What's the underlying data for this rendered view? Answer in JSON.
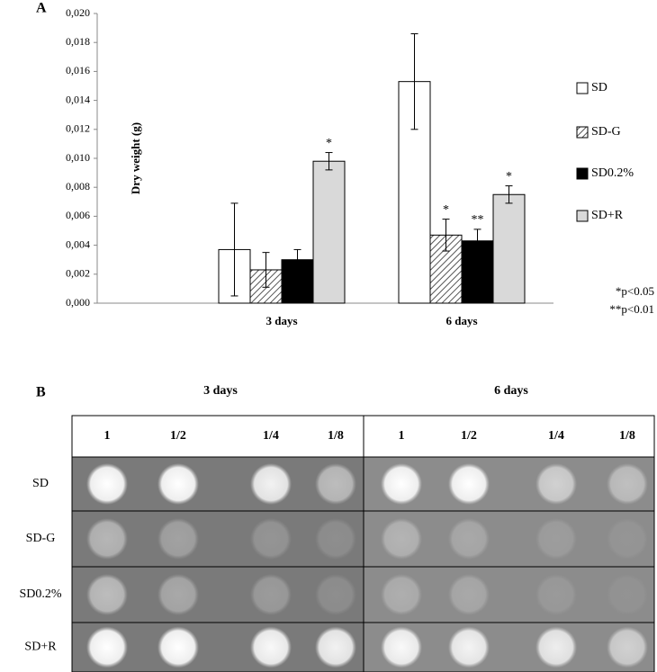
{
  "chart_data": {
    "type": "bar",
    "label": "A",
    "y_label": "Dry weight (g)",
    "categories": [
      "3 days",
      "6 days"
    ],
    "series": [
      {
        "name": "SD",
        "color": "#ffffff",
        "hatch": false,
        "values": [
          0.0037,
          0.0153
        ],
        "errors": [
          0.0032,
          0.0033
        ],
        "significance": [
          null,
          null
        ]
      },
      {
        "name": "SD-G",
        "color": "#ffffff",
        "hatch": true,
        "values": [
          0.0023,
          0.0047
        ],
        "errors": [
          0.0012,
          0.0011
        ],
        "significance": [
          null,
          "*"
        ]
      },
      {
        "name": "SD0.2%",
        "color": "#000000",
        "hatch": false,
        "values": [
          0.003,
          0.0043
        ],
        "errors": [
          0.0007,
          0.0008
        ],
        "significance": [
          null,
          "**"
        ]
      },
      {
        "name": "SD+R",
        "color": "#d9d9d9",
        "hatch": false,
        "values": [
          0.0098,
          0.0075
        ],
        "errors": [
          0.0006,
          0.0006
        ],
        "significance": [
          "*",
          "*"
        ]
      }
    ],
    "ylim": [
      0,
      0.02
    ],
    "yticks": [
      {
        "value": 0,
        "label": "0,000"
      },
      {
        "value": 0.002,
        "label": "0,002"
      },
      {
        "value": 0.004,
        "label": "0,004"
      },
      {
        "value": 0.006,
        "label": "0,006"
      },
      {
        "value": 0.008,
        "label": "0,008"
      },
      {
        "value": 0.01,
        "label": "0,010"
      },
      {
        "value": 0.012,
        "label": "0,012"
      },
      {
        "value": 0.014,
        "label": "0,014"
      },
      {
        "value": 0.016,
        "label": "0,016"
      },
      {
        "value": 0.018,
        "label": "0,018"
      },
      {
        "value": 0.02,
        "label": "0,020"
      }
    ],
    "grid": false,
    "legend": "right",
    "notes": [
      "*p<0.05",
      "**p<0.01"
    ]
  },
  "panel_b": {
    "label": "B",
    "group_headers": [
      "3 days",
      "6 days"
    ],
    "columns": [
      "1",
      "1/2",
      "1/4",
      "1/8",
      "1",
      "1/2",
      "1/4",
      "1/8"
    ],
    "rows": [
      "SD",
      "SD-G",
      "SD0.2%",
      "SD+R"
    ]
  }
}
